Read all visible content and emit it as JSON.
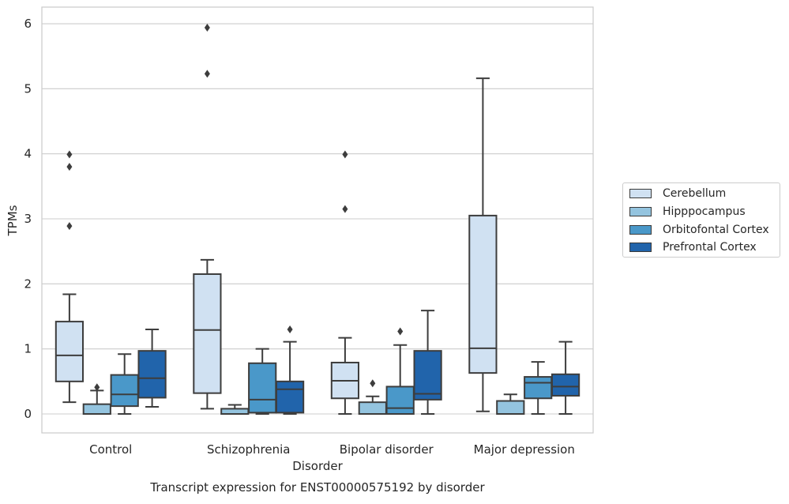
{
  "chart_data": {
    "type": "box",
    "title": "Transcript expression for ENST00000575192 by disorder",
    "xlabel": "Disorder",
    "ylabel": "TPMs",
    "ylim": [
      -0.28,
      6.25
    ],
    "yticks": [
      "0",
      "1",
      "2",
      "3",
      "4",
      "5",
      "6"
    ],
    "categories": [
      "Control",
      "Schizophrenia",
      "Bipolar disorder",
      "Major depression"
    ],
    "grid": "horizontal",
    "legend_position": "right",
    "series": [
      {
        "name": "Cerebellum",
        "color": "#d0e1f2",
        "boxes": [
          {
            "min": 0.18,
            "q1": 0.5,
            "median": 0.9,
            "q3": 1.42,
            "max": 1.84,
            "outliers": [
              2.89,
              3.8,
              3.99
            ]
          },
          {
            "min": 0.08,
            "q1": 0.32,
            "median": 1.29,
            "q3": 2.15,
            "max": 2.37,
            "outliers": [
              5.23,
              5.94
            ]
          },
          {
            "min": 0.0,
            "q1": 0.24,
            "median": 0.51,
            "q3": 0.79,
            "max": 1.17,
            "outliers": [
              3.15,
              3.99
            ]
          },
          {
            "min": 0.04,
            "q1": 0.63,
            "median": 1.01,
            "q3": 3.05,
            "max": 5.16,
            "outliers": []
          }
        ]
      },
      {
        "name": "Hipppocampus",
        "color": "#94c4df",
        "boxes": [
          {
            "min": 0.0,
            "q1": 0.0,
            "median": 0.0,
            "q3": 0.15,
            "max": 0.36,
            "outliers": [
              0.41
            ]
          },
          {
            "min": 0.0,
            "q1": 0.0,
            "median": 0.0,
            "q3": 0.08,
            "max": 0.14,
            "outliers": []
          },
          {
            "min": 0.0,
            "q1": 0.0,
            "median": 0.0,
            "q3": 0.18,
            "max": 0.27,
            "outliers": [
              0.47
            ]
          },
          {
            "min": 0.0,
            "q1": 0.0,
            "median": 0.0,
            "q3": 0.2,
            "max": 0.3,
            "outliers": []
          }
        ]
      },
      {
        "name": "Orbitofontal Cortex",
        "color": "#4a98c9",
        "boxes": [
          {
            "min": 0.0,
            "q1": 0.12,
            "median": 0.3,
            "q3": 0.6,
            "max": 0.92,
            "outliers": []
          },
          {
            "min": 0.0,
            "q1": 0.02,
            "median": 0.22,
            "q3": 0.78,
            "max": 1.0,
            "outliers": []
          },
          {
            "min": 0.0,
            "q1": 0.0,
            "median": 0.09,
            "q3": 0.42,
            "max": 1.06,
            "outliers": [
              1.27
            ]
          },
          {
            "min": 0.0,
            "q1": 0.24,
            "median": 0.48,
            "q3": 0.57,
            "max": 0.8,
            "outliers": []
          }
        ]
      },
      {
        "name": "Prefrontal Cortex",
        "color": "#2164ab",
        "boxes": [
          {
            "min": 0.11,
            "q1": 0.25,
            "median": 0.55,
            "q3": 0.97,
            "max": 1.3,
            "outliers": []
          },
          {
            "min": 0.0,
            "q1": 0.02,
            "median": 0.38,
            "q3": 0.5,
            "max": 1.11,
            "outliers": [
              1.3
            ]
          },
          {
            "min": 0.0,
            "q1": 0.22,
            "median": 0.31,
            "q3": 0.97,
            "max": 1.59,
            "outliers": []
          },
          {
            "min": 0.0,
            "q1": 0.28,
            "median": 0.42,
            "q3": 0.61,
            "max": 1.11,
            "outliers": []
          }
        ]
      }
    ]
  }
}
